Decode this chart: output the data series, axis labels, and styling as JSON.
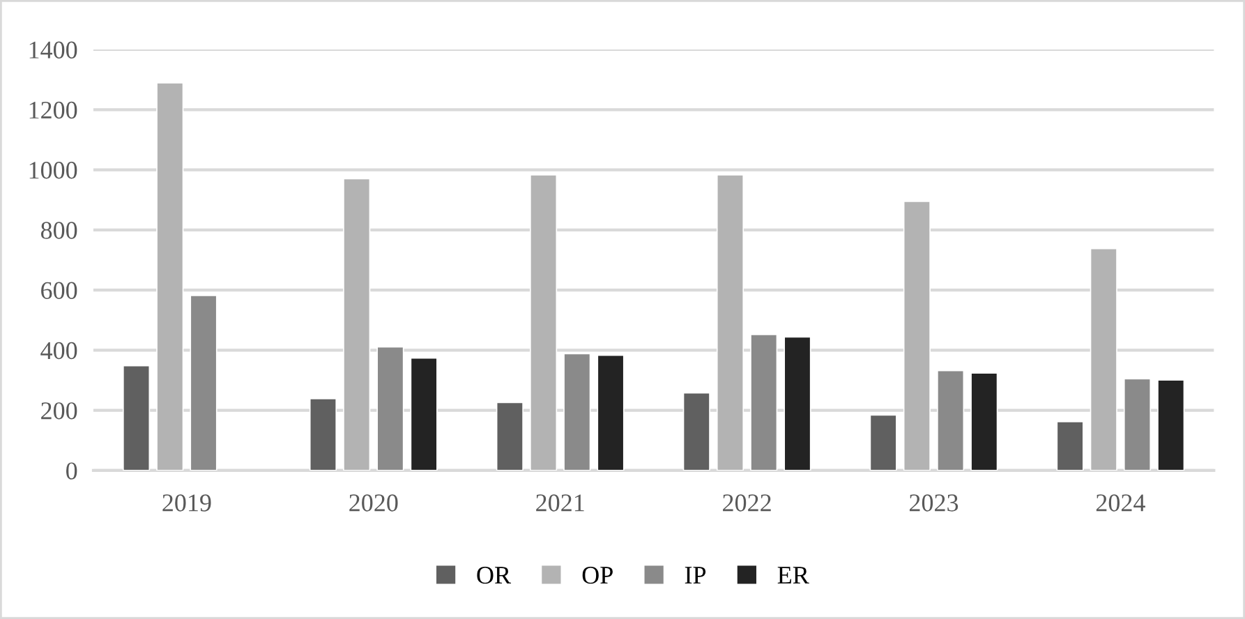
{
  "chart_data": {
    "type": "bar",
    "categories": [
      "2019",
      "2020",
      "2021",
      "2022",
      "2023",
      "2024"
    ],
    "series": [
      {
        "name": "OR",
        "color": "#606060",
        "values": [
          348,
          239,
          226,
          258,
          184,
          162
        ]
      },
      {
        "name": "OP",
        "color": "#b3b3b3",
        "values": [
          1289,
          970,
          983,
          983,
          895,
          738
        ]
      },
      {
        "name": "IP",
        "color": "#8a8a8a",
        "values": [
          582,
          411,
          388,
          452,
          332,
          305
        ]
      },
      {
        "name": "ER",
        "color": "#232323",
        "values": [
          null,
          374,
          383,
          444,
          324,
          301
        ]
      }
    ],
    "ylim": [
      0,
      1400
    ],
    "yticks": [
      0,
      200,
      400,
      600,
      800,
      1000,
      1200,
      1400
    ],
    "grid": "y",
    "legend": "bottom"
  }
}
